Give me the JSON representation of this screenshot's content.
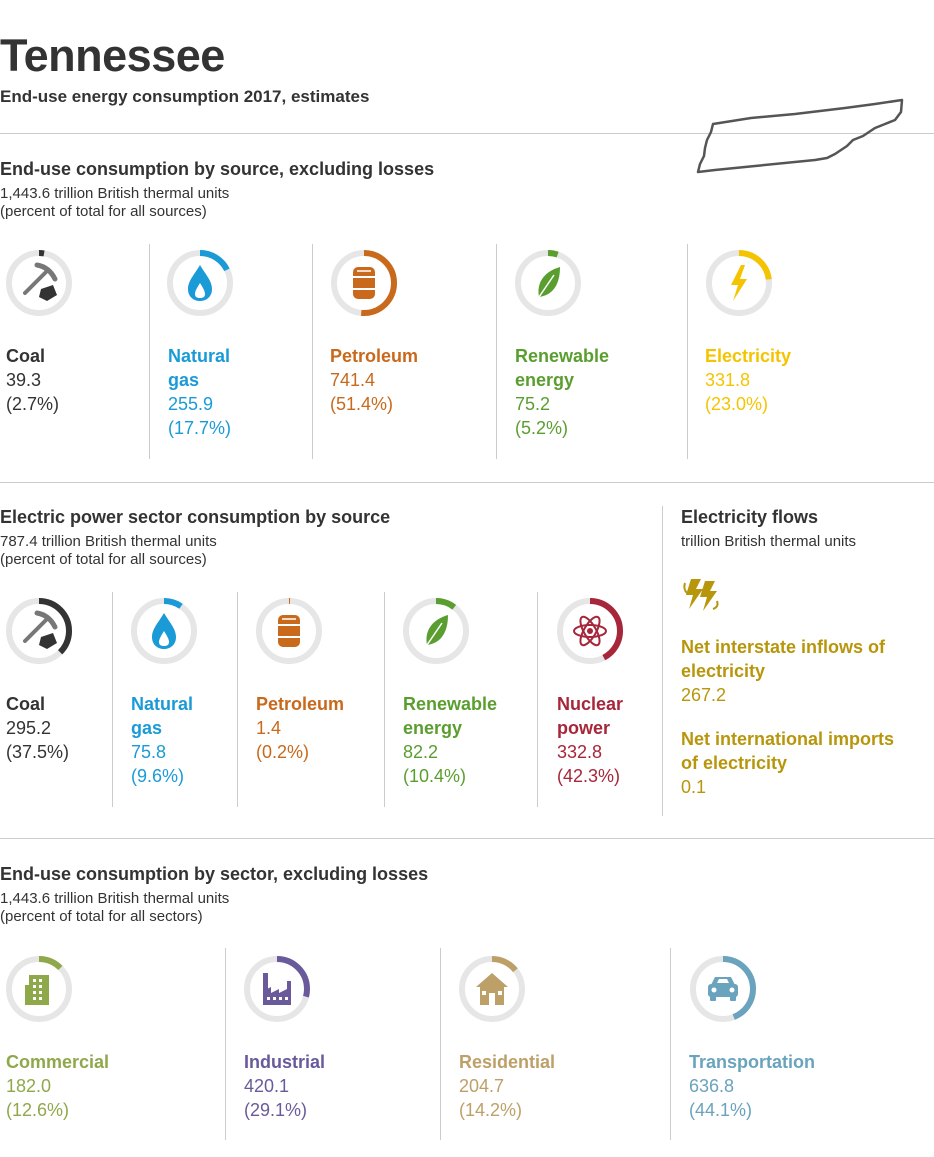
{
  "header": {
    "title": "Tennessee",
    "subtitle": "End-use energy consumption 2017, estimates"
  },
  "colors": {
    "coal": "#333333",
    "natural_gas": "#1a9bd7",
    "petroleum": "#c8691c",
    "renewable": "#5a9e2f",
    "electricity": "#f5c400",
    "nuclear": "#a6263a",
    "flows": "#b8960c",
    "commercial": "#8fa84a",
    "industrial": "#6a5a9c",
    "residential": "#bda068",
    "transportation": "#6aa3bd",
    "track": "#e6e6e6"
  },
  "section1": {
    "title": "End-use consumption by source, excluding losses",
    "units": "1,443.6 trillion British thermal units",
    "note": "(percent of total for all sources)"
  },
  "section2": {
    "title": "Electric power sector consumption by source",
    "units": "787.4 trillion British thermal units",
    "note": "(percent of total for all sources)"
  },
  "flows": {
    "title": "Electricity flows",
    "units": "trillion British thermal units",
    "items": [
      {
        "name_line1": "Net interstate inflows of",
        "name_line2": "electricity",
        "value": "267.2"
      },
      {
        "name_line1": "Net international imports",
        "name_line2": "of electricity",
        "value": "0.1"
      }
    ]
  },
  "section3": {
    "title": "End-use consumption by sector, excluding losses",
    "units": "1,443.6 trillion British thermal units",
    "note": "(percent of total for all sectors)"
  },
  "chart_data": [
    {
      "type": "donut",
      "title": "End-use consumption by source, excluding losses",
      "units": "trillion British thermal units",
      "total": 1443.6,
      "series": [
        {
          "name": "Coal",
          "value": 39.3,
          "percent": 2.7,
          "value_text": "39.3",
          "percent_text": "(2.7%)",
          "icon": "coal-icon"
        },
        {
          "name": "Natural gas",
          "value": 255.9,
          "percent": 17.7,
          "value_text": "255.9",
          "percent_text": "(17.7%)",
          "icon": "flame-icon"
        },
        {
          "name": "Petroleum",
          "value": 741.4,
          "percent": 51.4,
          "value_text": "741.4",
          "percent_text": "(51.4%)",
          "icon": "barrel-icon"
        },
        {
          "name": "Renewable energy",
          "value": 75.2,
          "percent": 5.2,
          "value_text": "75.2",
          "percent_text": "(5.2%)",
          "icon": "leaf-icon"
        },
        {
          "name": "Electricity",
          "value": 331.8,
          "percent": 23.0,
          "value_text": "331.8",
          "percent_text": "(23.0%)",
          "icon": "lightning-icon"
        }
      ]
    },
    {
      "type": "donut",
      "title": "Electric power sector consumption by source",
      "units": "trillion British thermal units",
      "total": 787.4,
      "series": [
        {
          "name": "Coal",
          "value": 295.2,
          "percent": 37.5,
          "value_text": "295.2",
          "percent_text": "(37.5%)",
          "icon": "coal-icon"
        },
        {
          "name": "Natural gas",
          "value": 75.8,
          "percent": 9.6,
          "value_text": "75.8",
          "percent_text": "(9.6%)",
          "icon": "flame-icon"
        },
        {
          "name": "Petroleum",
          "value": 1.4,
          "percent": 0.2,
          "value_text": "1.4",
          "percent_text": "(0.2%)",
          "icon": "barrel-icon"
        },
        {
          "name": "Renewable energy",
          "value": 82.2,
          "percent": 10.4,
          "value_text": "82.2",
          "percent_text": "(10.4%)",
          "icon": "leaf-icon"
        },
        {
          "name": "Nuclear power",
          "value": 332.8,
          "percent": 42.3,
          "value_text": "332.8",
          "percent_text": "(42.3%)",
          "icon": "atom-icon"
        }
      ]
    },
    {
      "type": "donut",
      "title": "End-use consumption by sector, excluding losses",
      "units": "trillion British thermal units",
      "total": 1443.6,
      "series": [
        {
          "name": "Commercial",
          "value": 182.0,
          "percent": 12.6,
          "value_text": "182.0",
          "percent_text": "(12.6%)",
          "icon": "building-icon"
        },
        {
          "name": "Industrial",
          "value": 420.1,
          "percent": 29.1,
          "value_text": "420.1",
          "percent_text": "(29.1%)",
          "icon": "factory-icon"
        },
        {
          "name": "Residential",
          "value": 204.7,
          "percent": 14.2,
          "value_text": "204.7",
          "percent_text": "(14.2%)",
          "icon": "house-icon"
        },
        {
          "name": "Transportation",
          "value": 636.8,
          "percent": 44.1,
          "value_text": "636.8",
          "percent_text": "(44.1%)",
          "icon": "car-icon"
        }
      ]
    }
  ],
  "labels": {
    "s1": [
      {
        "l1": "Coal",
        "l2": ""
      },
      {
        "l1": "Natural",
        "l2": "gas"
      },
      {
        "l1": "Petroleum",
        "l2": ""
      },
      {
        "l1": "Renewable",
        "l2": "energy"
      },
      {
        "l1": "Electricity",
        "l2": ""
      }
    ],
    "s2": [
      {
        "l1": "Coal",
        "l2": ""
      },
      {
        "l1": "Natural",
        "l2": "gas"
      },
      {
        "l1": "Petroleum",
        "l2": ""
      },
      {
        "l1": "Renewable",
        "l2": "energy"
      },
      {
        "l1": "Nuclear",
        "l2": "power"
      }
    ]
  }
}
